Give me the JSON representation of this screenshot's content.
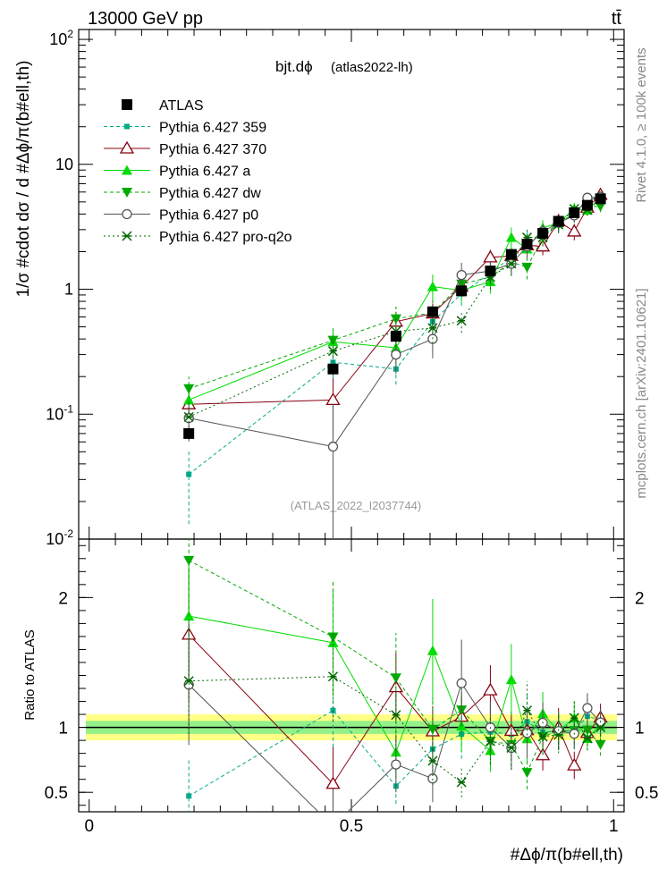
{
  "header": {
    "left": "13000 GeV pp",
    "right": "tt̄"
  },
  "side_text": {
    "rivet": "Rivet 4.1.0, ≥ 100k events",
    "mcplots": "mcplots.cern.ch [arXiv:2401.10621]"
  },
  "plot_title": {
    "main": "bjt.dϕ",
    "sub": "(atlas2022-lh)"
  },
  "watermark": "(ATLAS_2022_I2037744)",
  "axes": {
    "ylabel_top": "1/σ #cdot dσ / d #Δϕ/π(b#ell,th)",
    "ylabel_bottom": "Ratio to ATLAS",
    "xlabel": "#Δϕ/π(b#ell,th)"
  },
  "colors": {
    "atlas": "#000000",
    "p359": "#00aa88",
    "p370": "#880011",
    "pa": "#00dd00",
    "pdw": "#00aa00",
    "pp0": "#555555",
    "pq2o": "#006600",
    "band_outer": "#ffff66",
    "band_inner": "#88ee88"
  },
  "chart_data": {
    "type": "scatter",
    "title": "bjt.dϕ (atlas2022-lh)",
    "xlabel": "#Δϕ/π(b#ell,th)",
    "ylabel": "1/σ #cdot dσ / d #Δϕ/π(b#ell,th)",
    "ratio_ylabel": "Ratio to ATLAS",
    "xlim": [
      -0.02,
      1.02
    ],
    "ylim": [
      0.01,
      120
    ],
    "yscale": "log",
    "ratio_ylim": [
      0.35,
      2.45
    ],
    "x_ticks": [
      "0",
      "0.5",
      "1"
    ],
    "y_ticks": [
      "10^-2",
      "10^-1",
      "1",
      "10",
      "10^2"
    ],
    "ratio_ticks": [
      "0.5",
      "1",
      "2"
    ],
    "x": [
      0.19,
      0.465,
      0.585,
      0.655,
      0.71,
      0.765,
      0.805,
      0.835,
      0.865,
      0.895,
      0.925,
      0.95,
      0.975
    ],
    "series": [
      {
        "name": "ATLAS",
        "marker": "square",
        "dashed": false,
        "line": false,
        "values": [
          0.07,
          0.23,
          0.42,
          0.66,
          0.97,
          1.4,
          1.9,
          2.3,
          2.8,
          3.5,
          4.1,
          4.7,
          5.3
        ],
        "err": [
          0.1,
          0.1,
          0.05,
          0.05,
          0.05,
          0.05,
          0.05,
          0.05,
          0.05,
          0.05,
          0.05,
          0.05,
          0.05
        ]
      },
      {
        "name": "Pythia 6.427 359",
        "marker": "smallsquare",
        "dashed": true,
        "line": true,
        "values": [
          0.033,
          0.26,
          0.23,
          0.55,
          0.92,
          1.35,
          1.8,
          2.4,
          2.7,
          3.4,
          4.0,
          5.1,
          5.6
        ],
        "err": [
          0.6,
          0.25,
          0.25,
          0.2,
          0.2,
          0.2,
          0.2,
          0.2,
          0.2,
          0.15,
          0.15,
          0.12,
          0.1
        ]
      },
      {
        "name": "Pythia 6.427 370",
        "marker": "triangle-open",
        "dashed": false,
        "line": true,
        "values": [
          0.12,
          0.13,
          0.55,
          0.64,
          1.05,
          1.8,
          1.85,
          2.25,
          2.2,
          3.5,
          2.9,
          4.5,
          5.7
        ],
        "err": [
          0.3,
          0.5,
          0.2,
          0.2,
          0.15,
          0.15,
          0.15,
          0.15,
          0.15,
          0.15,
          0.15,
          0.1,
          0.1
        ]
      },
      {
        "name": "Pythia 6.427 a",
        "marker": "triangle",
        "dashed": false,
        "line": true,
        "values": [
          0.13,
          0.38,
          0.34,
          1.05,
          0.98,
          1.15,
          2.6,
          2.1,
          3.1,
          3.4,
          4.4,
          4.3,
          5.4
        ],
        "err": [
          0.25,
          0.25,
          0.25,
          0.25,
          0.2,
          0.2,
          0.2,
          0.2,
          0.15,
          0.15,
          0.12,
          0.1,
          0.1
        ]
      },
      {
        "name": "Pythia 6.427 dw",
        "marker": "triangle-down",
        "dashed": true,
        "line": true,
        "values": [
          0.16,
          0.39,
          0.58,
          0.65,
          1.1,
          1.25,
          1.65,
          1.5,
          2.6,
          3.4,
          4.0,
          4.6,
          4.6
        ],
        "err": [
          0.25,
          0.25,
          0.25,
          0.25,
          0.2,
          0.2,
          0.2,
          0.2,
          0.15,
          0.15,
          0.12,
          0.1,
          0.1
        ]
      },
      {
        "name": "Pythia 6.427 p0",
        "marker": "circle-open",
        "dashed": false,
        "line": true,
        "values": [
          0.093,
          0.055,
          0.3,
          0.4,
          1.3,
          1.4,
          1.6,
          2.2,
          2.9,
          3.4,
          3.9,
          5.4,
          5.5
        ],
        "err": [
          0.35,
          1.2,
          0.3,
          0.3,
          0.25,
          0.2,
          0.2,
          0.2,
          0.15,
          0.15,
          0.12,
          0.1,
          0.1
        ]
      },
      {
        "name": "Pythia 6.427 pro-q2o",
        "marker": "star",
        "dashed": false,
        "dotted": true,
        "line": true,
        "values": [
          0.095,
          0.32,
          0.46,
          0.49,
          0.56,
          1.25,
          1.6,
          2.6,
          2.6,
          3.3,
          4.4,
          4.3,
          5.3
        ],
        "err": [
          0.3,
          0.25,
          0.25,
          0.25,
          0.2,
          0.2,
          0.2,
          0.2,
          0.15,
          0.15,
          0.12,
          0.1,
          0.1
        ]
      }
    ]
  }
}
